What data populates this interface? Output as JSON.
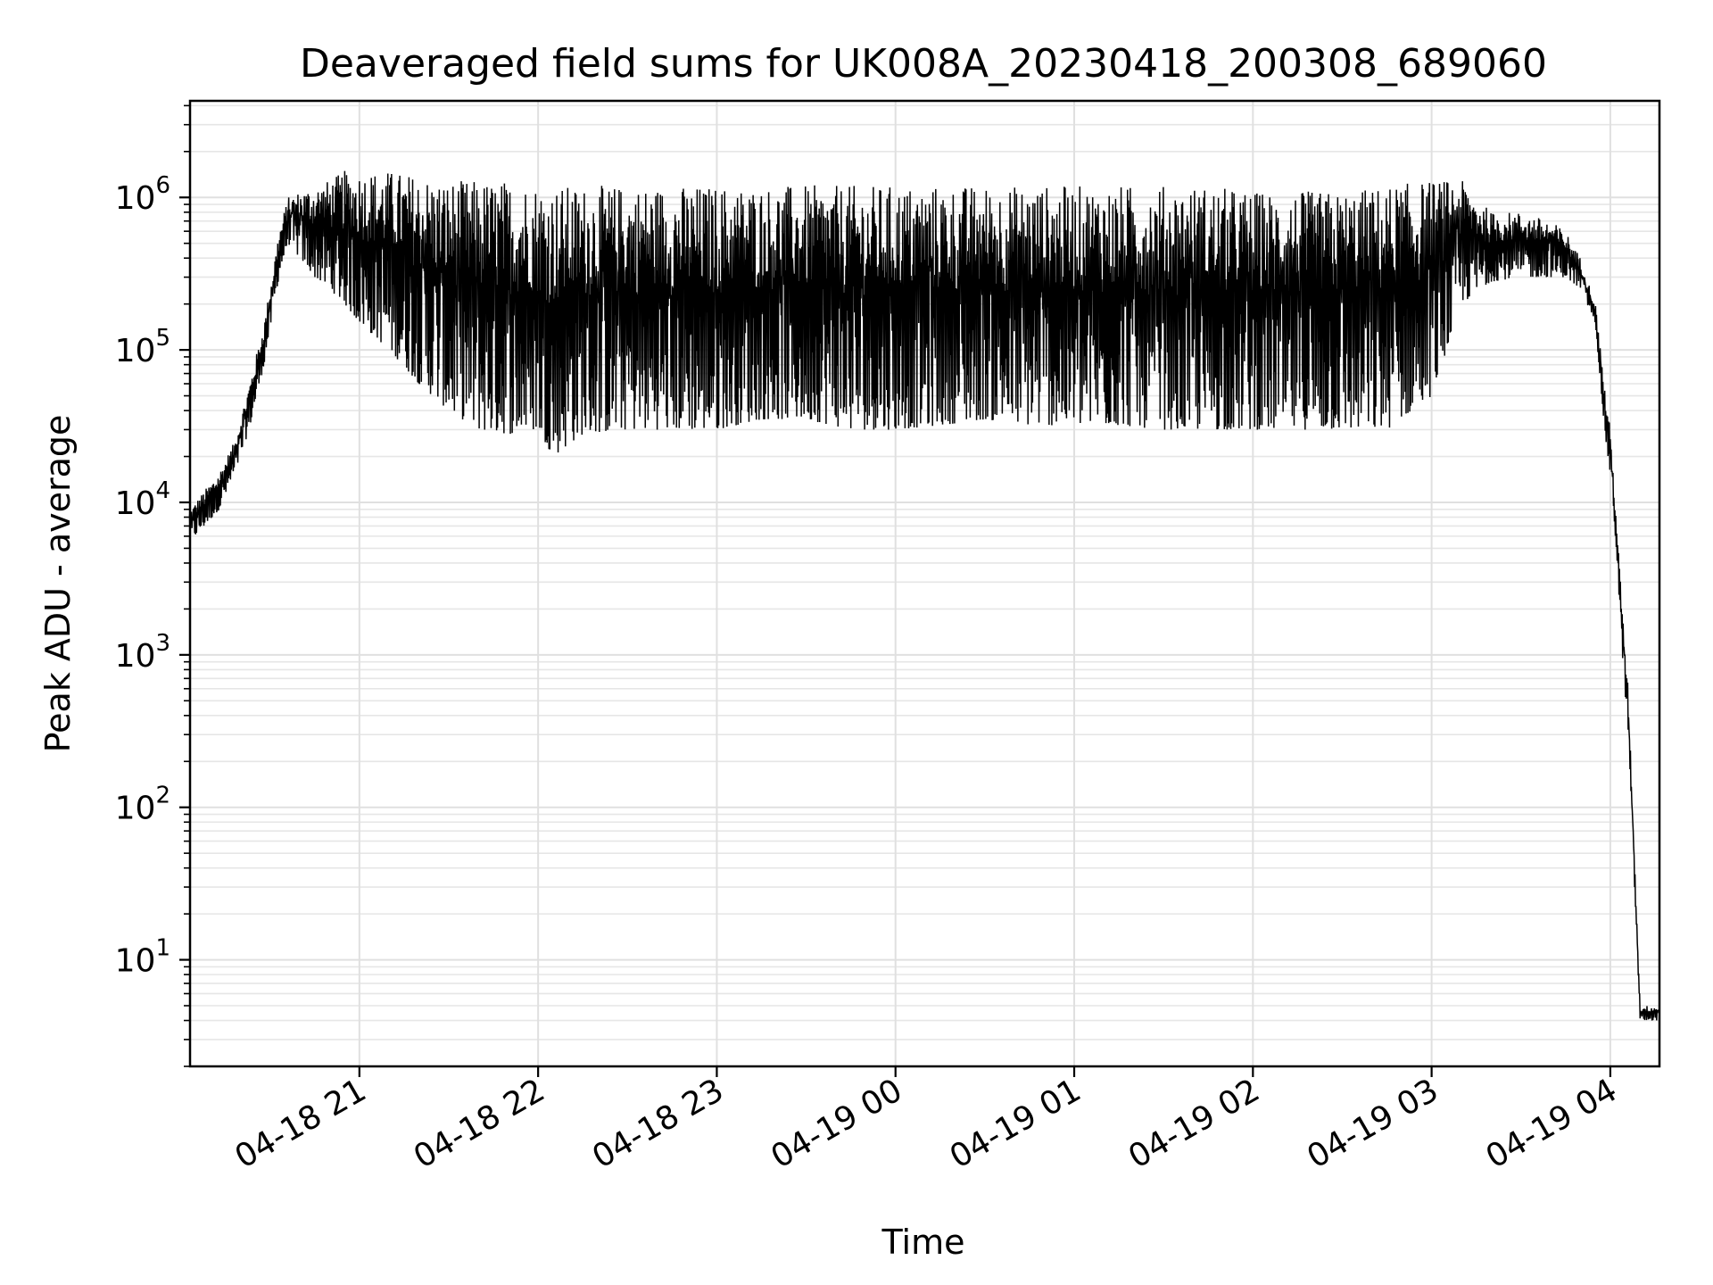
{
  "chart_data": {
    "type": "line",
    "title": "Deaveraged field sums for UK008A_20230418_200308_689060",
    "xlabel": "Time",
    "ylabel": "Peak ADU - average",
    "yscale": "log",
    "ylim": [
      2,
      4300000
    ],
    "xlim": [
      "2023-04-18 20:03:08",
      "2023-04-19 04:16:30"
    ],
    "grid": true,
    "x_ticks": [
      {
        "value": "2023-04-18 21:00",
        "label": "04-18 21"
      },
      {
        "value": "2023-04-18 22:00",
        "label": "04-18 22"
      },
      {
        "value": "2023-04-18 23:00",
        "label": "04-18 23"
      },
      {
        "value": "2023-04-19 00:00",
        "label": "04-19 00"
      },
      {
        "value": "2023-04-19 01:00",
        "label": "04-19 01"
      },
      {
        "value": "2023-04-19 02:00",
        "label": "04-19 02"
      },
      {
        "value": "2023-04-19 03:00",
        "label": "04-19 03"
      },
      {
        "value": "2023-04-19 04:00",
        "label": "04-19 04"
      }
    ],
    "y_ticks": [
      {
        "value": 10,
        "base": "10",
        "exp": "1"
      },
      {
        "value": 100,
        "base": "10",
        "exp": "2"
      },
      {
        "value": 1000,
        "base": "10",
        "exp": "3"
      },
      {
        "value": 10000,
        "base": "10",
        "exp": "4"
      },
      {
        "value": 100000,
        "base": "10",
        "exp": "5"
      },
      {
        "value": 1000000,
        "base": "10",
        "exp": "6"
      }
    ],
    "series": [
      {
        "color": "#000000",
        "x": [
          "2023-04-18 20:03",
          "2023-04-18 20:08",
          "2023-04-18 20:13",
          "2023-04-18 20:18",
          "2023-04-18 20:23",
          "2023-04-18 20:28",
          "2023-04-18 20:33",
          "2023-04-18 20:36",
          "2023-04-18 20:40",
          "2023-04-18 20:45",
          "2023-04-18 20:50",
          "2023-04-18 20:55",
          "2023-04-18 21:00",
          "2023-04-18 21:10",
          "2023-04-18 21:20",
          "2023-04-18 21:30",
          "2023-04-18 21:40",
          "2023-04-18 21:50",
          "2023-04-18 22:00",
          "2023-04-18 22:05",
          "2023-04-18 22:15",
          "2023-04-18 22:30",
          "2023-04-18 22:45",
          "2023-04-18 23:00",
          "2023-04-18 23:15",
          "2023-04-18 23:30",
          "2023-04-18 23:45",
          "2023-04-19 00:00",
          "2023-04-19 00:15",
          "2023-04-19 00:30",
          "2023-04-19 00:45",
          "2023-04-19 01:00",
          "2023-04-19 01:15",
          "2023-04-19 01:30",
          "2023-04-19 01:45",
          "2023-04-19 02:00",
          "2023-04-19 02:15",
          "2023-04-19 02:30",
          "2023-04-19 02:45",
          "2023-04-19 03:00",
          "2023-04-19 03:10",
          "2023-04-19 03:20",
          "2023-04-19 03:30",
          "2023-04-19 03:40",
          "2023-04-19 03:45",
          "2023-04-19 03:50",
          "2023-04-19 03:55",
          "2023-04-19 03:58",
          "2023-04-19 04:00",
          "2023-04-19 04:02",
          "2023-04-19 04:04",
          "2023-04-19 04:06",
          "2023-04-19 04:10",
          "2023-04-19 04:16"
        ],
        "low": [
          5500,
          7000,
          9000,
          15000,
          30000,
          80000,
          300000,
          500000,
          400000,
          300000,
          250000,
          200000,
          150000,
          100000,
          60000,
          40000,
          30000,
          28000,
          30000,
          20000,
          28000,
          30000,
          30000,
          30000,
          35000,
          35000,
          30000,
          30000,
          32000,
          35000,
          32000,
          32000,
          32000,
          30000,
          30000,
          30000,
          30000,
          30000,
          30000,
          50000,
          200000,
          280000,
          300000,
          300000,
          300000,
          250000,
          150000,
          30000,
          15000,
          5000,
          1000,
          300,
          4,
          4
        ],
        "high": [
          9000,
          12000,
          16000,
          25000,
          60000,
          150000,
          600000,
          1000000,
          1100000,
          1200000,
          1300000,
          1500000,
          1500000,
          1500000,
          1400000,
          1300000,
          1300000,
          1300000,
          1250000,
          1200000,
          1200000,
          1200000,
          1200000,
          1200000,
          1200000,
          1200000,
          1200000,
          1200000,
          1200000,
          1200000,
          1200000,
          1200000,
          1200000,
          1200000,
          1200000,
          1100000,
          1100000,
          1100000,
          1200000,
          1300000,
          1300000,
          800000,
          800000,
          700000,
          600000,
          400000,
          200000,
          60000,
          30000,
          8000,
          2000,
          600,
          5,
          5
        ]
      }
    ]
  }
}
